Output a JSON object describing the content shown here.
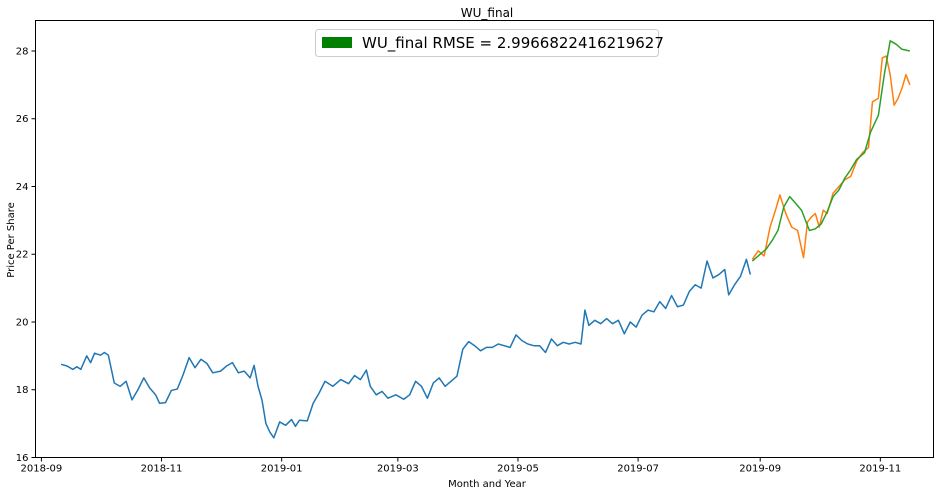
{
  "chart_data": {
    "type": "line",
    "title": "WU_final",
    "xlabel": "Month and Year",
    "ylabel": "Price Per Share",
    "xlim": [
      "2018-08-29",
      "2019-11-28"
    ],
    "ylim": [
      16,
      28.9
    ],
    "x_ticks": [
      "2018-09-01",
      "2018-11-01",
      "2019-01-01",
      "2019-03-01",
      "2019-05-01",
      "2019-07-01",
      "2019-09-01",
      "2019-11-01"
    ],
    "x_tick_labels": [
      "2018-09",
      "2018-11",
      "2019-01",
      "2019-03",
      "2019-05",
      "2019-07",
      "2019-09",
      "2019-11"
    ],
    "y_ticks": [
      16,
      18,
      20,
      22,
      24,
      26,
      28
    ],
    "y_tick_labels": [
      "16",
      "18",
      "20",
      "22",
      "24",
      "26",
      "28"
    ],
    "grid": false,
    "legend": {
      "placement": "top-center",
      "swatch_color": "#008000",
      "text": "WU_final RMSE = 2.9966822416219627"
    },
    "series": [
      {
        "color": "#1f77b4",
        "points": [
          [
            "2018-09-11",
            18.75
          ],
          [
            "2018-09-14",
            18.7
          ],
          [
            "2018-09-17",
            18.6
          ],
          [
            "2018-09-19",
            18.68
          ],
          [
            "2018-09-21",
            18.6
          ],
          [
            "2018-09-24",
            19.0
          ],
          [
            "2018-09-26",
            18.8
          ],
          [
            "2018-09-28",
            19.08
          ],
          [
            "2018-10-01",
            19.02
          ],
          [
            "2018-10-03",
            19.1
          ],
          [
            "2018-10-05",
            19.02
          ],
          [
            "2018-10-08",
            18.2
          ],
          [
            "2018-10-11",
            18.1
          ],
          [
            "2018-10-14",
            18.25
          ],
          [
            "2018-10-17",
            17.7
          ],
          [
            "2018-10-20",
            18.0
          ],
          [
            "2018-10-23",
            18.35
          ],
          [
            "2018-10-26",
            18.05
          ],
          [
            "2018-10-29",
            17.85
          ],
          [
            "2018-10-31",
            17.6
          ],
          [
            "2018-11-03",
            17.62
          ],
          [
            "2018-11-06",
            17.98
          ],
          [
            "2018-11-09",
            18.02
          ],
          [
            "2018-11-12",
            18.45
          ],
          [
            "2018-11-15",
            18.95
          ],
          [
            "2018-11-18",
            18.65
          ],
          [
            "2018-11-21",
            18.9
          ],
          [
            "2018-11-24",
            18.78
          ],
          [
            "2018-11-27",
            18.5
          ],
          [
            "2018-12-01",
            18.55
          ],
          [
            "2018-12-04",
            18.7
          ],
          [
            "2018-12-07",
            18.8
          ],
          [
            "2018-12-10",
            18.5
          ],
          [
            "2018-12-13",
            18.55
          ],
          [
            "2018-12-16",
            18.35
          ],
          [
            "2018-12-18",
            18.72
          ],
          [
            "2018-12-20",
            18.1
          ],
          [
            "2018-12-22",
            17.7
          ],
          [
            "2018-12-24",
            17.0
          ],
          [
            "2018-12-26",
            16.75
          ],
          [
            "2018-12-28",
            16.58
          ],
          [
            "2018-12-31",
            17.05
          ],
          [
            "2019-01-03",
            16.95
          ],
          [
            "2019-01-06",
            17.12
          ],
          [
            "2019-01-08",
            16.92
          ],
          [
            "2019-01-10",
            17.1
          ],
          [
            "2019-01-14",
            17.08
          ],
          [
            "2019-01-17",
            17.6
          ],
          [
            "2019-01-20",
            17.9
          ],
          [
            "2019-01-23",
            18.25
          ],
          [
            "2019-01-27",
            18.1
          ],
          [
            "2019-01-31",
            18.3
          ],
          [
            "2019-02-04",
            18.18
          ],
          [
            "2019-02-07",
            18.42
          ],
          [
            "2019-02-10",
            18.3
          ],
          [
            "2019-02-13",
            18.58
          ],
          [
            "2019-02-15",
            18.1
          ],
          [
            "2019-02-18",
            17.85
          ],
          [
            "2019-02-21",
            17.95
          ],
          [
            "2019-02-24",
            17.75
          ],
          [
            "2019-02-28",
            17.85
          ],
          [
            "2019-03-04",
            17.72
          ],
          [
            "2019-03-07",
            17.85
          ],
          [
            "2019-03-10",
            18.25
          ],
          [
            "2019-03-13",
            18.1
          ],
          [
            "2019-03-16",
            17.75
          ],
          [
            "2019-03-19",
            18.2
          ],
          [
            "2019-03-22",
            18.35
          ],
          [
            "2019-03-25",
            18.1
          ],
          [
            "2019-03-28",
            18.25
          ],
          [
            "2019-03-31",
            18.4
          ],
          [
            "2019-04-03",
            19.2
          ],
          [
            "2019-04-06",
            19.42
          ],
          [
            "2019-04-09",
            19.3
          ],
          [
            "2019-04-12",
            19.15
          ],
          [
            "2019-04-15",
            19.25
          ],
          [
            "2019-04-18",
            19.25
          ],
          [
            "2019-04-21",
            19.35
          ],
          [
            "2019-04-24",
            19.3
          ],
          [
            "2019-04-27",
            19.25
          ],
          [
            "2019-04-30",
            19.62
          ],
          [
            "2019-05-03",
            19.45
          ],
          [
            "2019-05-06",
            19.35
          ],
          [
            "2019-05-09",
            19.3
          ],
          [
            "2019-05-12",
            19.3
          ],
          [
            "2019-05-15",
            19.1
          ],
          [
            "2019-05-18",
            19.5
          ],
          [
            "2019-05-21",
            19.3
          ],
          [
            "2019-05-24",
            19.4
          ],
          [
            "2019-05-27",
            19.35
          ],
          [
            "2019-05-30",
            19.4
          ],
          [
            "2019-06-02",
            19.35
          ],
          [
            "2019-06-04",
            20.35
          ],
          [
            "2019-06-06",
            19.9
          ],
          [
            "2019-06-09",
            20.05
          ],
          [
            "2019-06-12",
            19.95
          ],
          [
            "2019-06-15",
            20.1
          ],
          [
            "2019-06-18",
            19.95
          ],
          [
            "2019-06-21",
            20.05
          ],
          [
            "2019-06-24",
            19.65
          ],
          [
            "2019-06-27",
            20.0
          ],
          [
            "2019-06-30",
            19.85
          ],
          [
            "2019-07-03",
            20.2
          ],
          [
            "2019-07-06",
            20.35
          ],
          [
            "2019-07-09",
            20.3
          ],
          [
            "2019-07-12",
            20.6
          ],
          [
            "2019-07-15",
            20.4
          ],
          [
            "2019-07-18",
            20.78
          ],
          [
            "2019-07-21",
            20.45
          ],
          [
            "2019-07-24",
            20.5
          ],
          [
            "2019-07-27",
            20.9
          ],
          [
            "2019-07-30",
            21.1
          ],
          [
            "2019-08-02",
            21.0
          ],
          [
            "2019-08-05",
            21.8
          ],
          [
            "2019-08-08",
            21.3
          ],
          [
            "2019-08-11",
            21.4
          ],
          [
            "2019-08-14",
            21.55
          ],
          [
            "2019-08-16",
            20.8
          ],
          [
            "2019-08-19",
            21.1
          ],
          [
            "2019-08-22",
            21.35
          ],
          [
            "2019-08-25",
            21.85
          ],
          [
            "2019-08-27",
            21.4
          ]
        ]
      },
      {
        "color": "#ff7f0e",
        "points": [
          [
            "2019-08-28",
            21.85
          ],
          [
            "2019-08-31",
            22.1
          ],
          [
            "2019-09-03",
            21.95
          ],
          [
            "2019-09-06",
            22.8
          ],
          [
            "2019-09-09",
            23.35
          ],
          [
            "2019-09-11",
            23.75
          ],
          [
            "2019-09-14",
            23.2
          ],
          [
            "2019-09-17",
            22.8
          ],
          [
            "2019-09-20",
            22.7
          ],
          [
            "2019-09-23",
            21.9
          ],
          [
            "2019-09-25",
            22.95
          ],
          [
            "2019-09-27",
            23.1
          ],
          [
            "2019-09-29",
            23.2
          ],
          [
            "2019-10-01",
            22.8
          ],
          [
            "2019-10-03",
            23.3
          ],
          [
            "2019-10-05",
            23.2
          ],
          [
            "2019-10-08",
            23.8
          ],
          [
            "2019-10-11",
            24.0
          ],
          [
            "2019-10-14",
            24.2
          ],
          [
            "2019-10-17",
            24.3
          ],
          [
            "2019-10-20",
            24.75
          ],
          [
            "2019-10-23",
            25.0
          ],
          [
            "2019-10-26",
            25.15
          ],
          [
            "2019-10-28",
            26.5
          ],
          [
            "2019-10-31",
            26.6
          ],
          [
            "2019-11-02",
            27.8
          ],
          [
            "2019-11-04",
            27.85
          ],
          [
            "2019-11-06",
            27.3
          ],
          [
            "2019-11-08",
            26.4
          ],
          [
            "2019-11-10",
            26.6
          ],
          [
            "2019-11-12",
            26.9
          ],
          [
            "2019-11-14",
            27.3
          ],
          [
            "2019-11-16",
            27.0
          ]
        ]
      },
      {
        "color": "#2ca02c",
        "points": [
          [
            "2019-08-28",
            21.8
          ],
          [
            "2019-09-01",
            22.0
          ],
          [
            "2019-09-04",
            22.15
          ],
          [
            "2019-09-07",
            22.4
          ],
          [
            "2019-09-10",
            22.7
          ],
          [
            "2019-09-13",
            23.4
          ],
          [
            "2019-09-16",
            23.7
          ],
          [
            "2019-09-19",
            23.5
          ],
          [
            "2019-09-22",
            23.3
          ],
          [
            "2019-09-26",
            22.7
          ],
          [
            "2019-09-29",
            22.75
          ],
          [
            "2019-10-02",
            22.9
          ],
          [
            "2019-10-05",
            23.25
          ],
          [
            "2019-10-08",
            23.7
          ],
          [
            "2019-10-11",
            23.9
          ],
          [
            "2019-10-14",
            24.25
          ],
          [
            "2019-10-17",
            24.5
          ],
          [
            "2019-10-20",
            24.8
          ],
          [
            "2019-10-24",
            25.0
          ],
          [
            "2019-10-27",
            25.6
          ],
          [
            "2019-10-31",
            26.1
          ],
          [
            "2019-11-03",
            27.3
          ],
          [
            "2019-11-06",
            28.3
          ],
          [
            "2019-11-09",
            28.2
          ],
          [
            "2019-11-12",
            28.05
          ],
          [
            "2019-11-16",
            28.0
          ]
        ]
      }
    ]
  }
}
